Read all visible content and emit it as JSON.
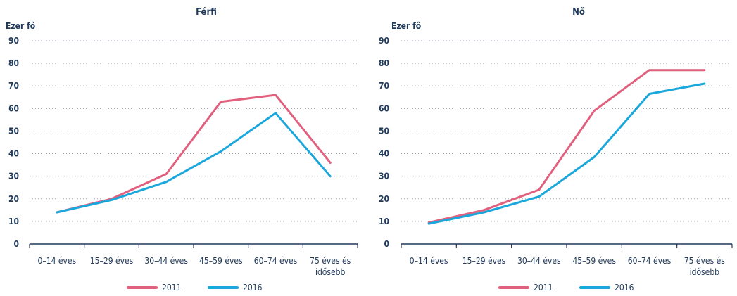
{
  "chart_data": [
    {
      "type": "line",
      "title": "Férfi",
      "ylabel": "Ezer fő",
      "ylim": [
        0,
        90
      ],
      "yticks": [
        0,
        10,
        20,
        30,
        40,
        50,
        60,
        70,
        80,
        90
      ],
      "categories": [
        "0–14 éves",
        "15–29 éves",
        "30–44 éves",
        "45–59 éves",
        "60–74 éves",
        "75 éves és idősebb"
      ],
      "series": [
        {
          "name": "2011",
          "color": "#e0607e",
          "values": [
            14,
            20,
            31,
            63,
            66,
            36
          ]
        },
        {
          "name": "2016",
          "color": "#1aa7dc",
          "values": [
            14,
            19.5,
            27.5,
            41,
            58,
            30
          ]
        }
      ],
      "grid": true
    },
    {
      "type": "line",
      "title": "Nő",
      "ylabel": "Ezer fő",
      "ylim": [
        0,
        90
      ],
      "yticks": [
        0,
        10,
        20,
        30,
        40,
        50,
        60,
        70,
        80,
        90
      ],
      "categories": [
        "0–14 éves",
        "15–29 éves",
        "30–44 éves",
        "45–59 éves",
        "60–74 éves",
        "75 éves és idősebb"
      ],
      "series": [
        {
          "name": "2011",
          "color": "#e0607e",
          "values": [
            9.5,
            15,
            24,
            59,
            77,
            77
          ]
        },
        {
          "name": "2016",
          "color": "#1aa7dc",
          "values": [
            9,
            14,
            21,
            38.5,
            66.5,
            71
          ]
        }
      ],
      "grid": true
    }
  ]
}
